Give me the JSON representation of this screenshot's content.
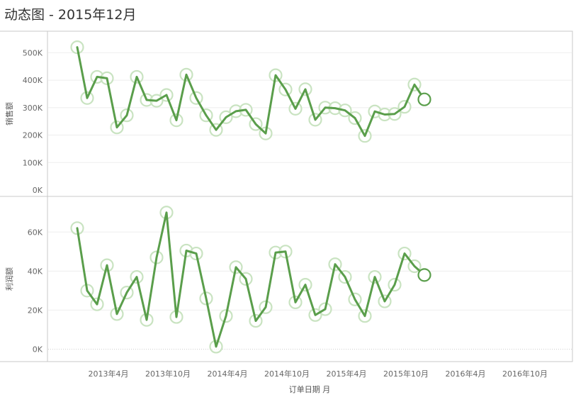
{
  "page": {
    "title": "动态图 - 2015年12月"
  },
  "chart_data": {
    "type": "line",
    "xlabel": "订单日期 月",
    "x_ticks": [
      "2013年4月",
      "2013年10月",
      "2014年4月",
      "2014年10月",
      "2015年4月",
      "2015年10月",
      "2016年4月",
      "2016年10月"
    ],
    "x_start": "2013-01",
    "x_end": "2016-12",
    "current": "2015-12",
    "color": "#5a9e4b",
    "trail_color": "#c9e3c1",
    "grid": true,
    "panels": [
      {
        "name": "sales",
        "ylabel": "销售额",
        "ylim": [
          0,
          550000
        ],
        "y_ticks": [
          {
            "value": 0,
            "label": "0K"
          },
          {
            "value": 100000,
            "label": "100K"
          },
          {
            "value": 200000,
            "label": "200K"
          },
          {
            "value": 300000,
            "label": "300K"
          },
          {
            "value": 400000,
            "label": "400K"
          },
          {
            "value": 500000,
            "label": "500K"
          }
        ],
        "values": [
          520000,
          335000,
          412000,
          407000,
          228000,
          272000,
          412000,
          328000,
          325000,
          346000,
          254000,
          420000,
          335000,
          272000,
          219000,
          265000,
          287000,
          292000,
          240000,
          206000,
          418000,
          366000,
          296000,
          367000,
          256000,
          300000,
          298000,
          290000,
          262000,
          197000,
          286000,
          275000,
          277000,
          303000,
          384000,
          330000
        ]
      },
      {
        "name": "profit",
        "ylabel": "利润额",
        "ylim": [
          -2000,
          75000
        ],
        "y_ticks": [
          {
            "value": 0,
            "label": "0K"
          },
          {
            "value": 20000,
            "label": "20K"
          },
          {
            "value": 40000,
            "label": "40K"
          },
          {
            "value": 60000,
            "label": "60K"
          }
        ],
        "values": [
          62000,
          30000,
          23000,
          43000,
          18000,
          29000,
          37000,
          15000,
          47000,
          70000,
          16500,
          50500,
          49000,
          26000,
          1300,
          17000,
          42000,
          36000,
          14500,
          21500,
          49500,
          50000,
          24000,
          33000,
          17500,
          20500,
          43500,
          37000,
          25500,
          17000,
          37000,
          24500,
          33000,
          49000,
          42500,
          38000
        ]
      }
    ]
  }
}
